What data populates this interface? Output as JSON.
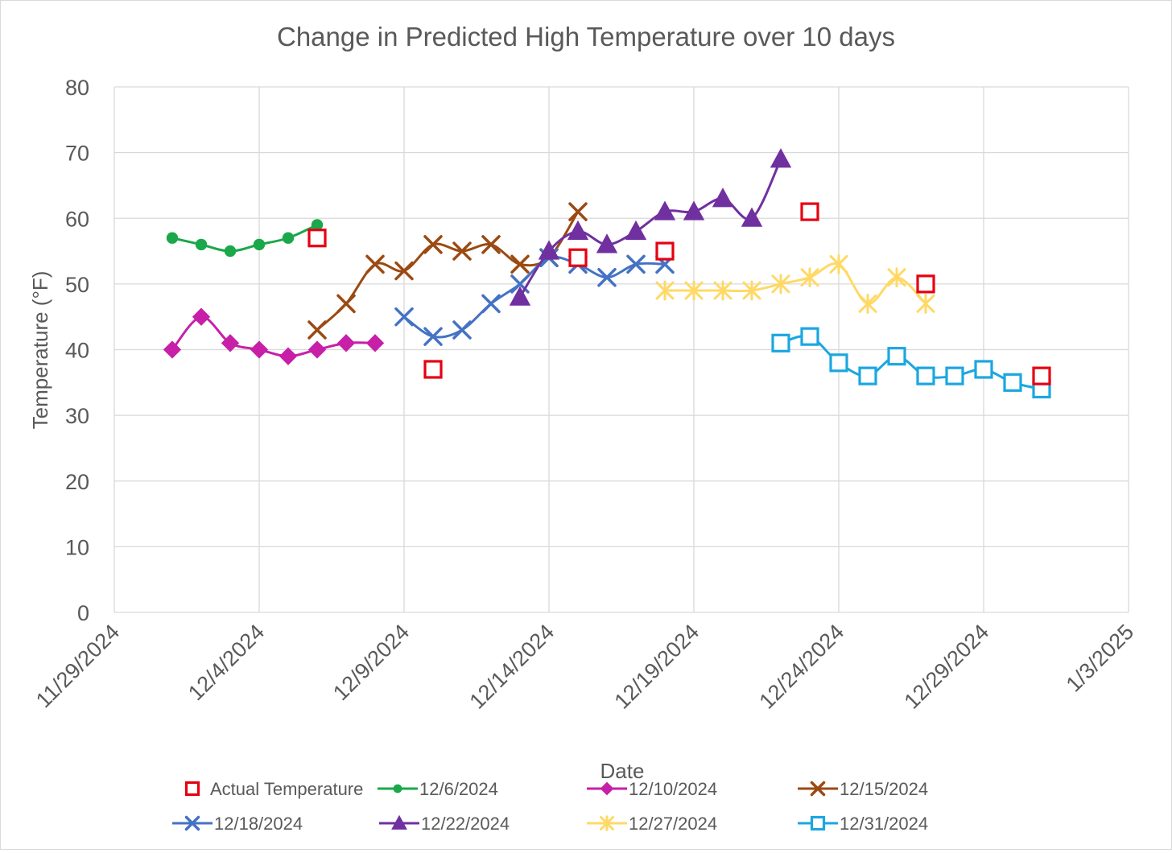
{
  "chart_data": {
    "type": "line",
    "title": "Change in Predicted High Temperature over 10 days",
    "xlabel": "Date",
    "ylabel": "Temperature (°F)",
    "ylim": [
      0,
      80
    ],
    "yticks": [
      0,
      10,
      20,
      30,
      40,
      50,
      60,
      70,
      80
    ],
    "x_origin": "11/29/2024",
    "xlim": [
      0,
      35
    ],
    "xticks": [
      {
        "day": 0,
        "label": "11/29/2024"
      },
      {
        "day": 5,
        "label": "12/4/2024"
      },
      {
        "day": 10,
        "label": "12/9/2024"
      },
      {
        "day": 15,
        "label": "12/14/2024"
      },
      {
        "day": 20,
        "label": "12/19/2024"
      },
      {
        "day": 25,
        "label": "12/24/2024"
      },
      {
        "day": 30,
        "label": "12/29/2024"
      },
      {
        "day": 35,
        "label": "1/3/2025"
      }
    ],
    "grid": true,
    "legend_position": "bottom",
    "series": [
      {
        "name": "Actual Temperature",
        "color": "#e60012",
        "marker": "square-open",
        "line": false,
        "x": [
          7,
          11,
          16,
          19,
          24,
          28,
          32
        ],
        "y": [
          57,
          37,
          54,
          55,
          61,
          50,
          36
        ]
      },
      {
        "name": "12/6/2024",
        "color": "#1aa84a",
        "marker": "circle",
        "line": true,
        "x": [
          2,
          3,
          4,
          5,
          6,
          7
        ],
        "y": [
          57,
          56,
          55,
          56,
          57,
          59
        ]
      },
      {
        "name": "12/10/2024",
        "color": "#c71fa8",
        "marker": "diamond",
        "line": true,
        "x": [
          2,
          3,
          4,
          5,
          6,
          7,
          8,
          9
        ],
        "y": [
          40,
          45,
          41,
          40,
          39,
          40,
          41,
          41
        ]
      },
      {
        "name": "12/15/2024",
        "color": "#9b4a12",
        "marker": "x",
        "line": true,
        "x": [
          7,
          8,
          9,
          10,
          11,
          12,
          13,
          14,
          15,
          16
        ],
        "y": [
          43,
          47,
          53,
          52,
          56,
          55,
          56,
          53,
          54,
          61
        ]
      },
      {
        "name": "12/18/2024",
        "color": "#4472c4",
        "marker": "x",
        "line": true,
        "x": [
          10,
          11,
          12,
          13,
          14,
          15,
          16,
          17,
          18,
          19
        ],
        "y": [
          45,
          42,
          43,
          47,
          50,
          54,
          53,
          51,
          53,
          53
        ]
      },
      {
        "name": "12/22/2024",
        "color": "#7030a0",
        "marker": "triangle",
        "line": true,
        "x": [
          14,
          15,
          16,
          17,
          18,
          19,
          20,
          21,
          22,
          23
        ],
        "y": [
          48,
          55,
          58,
          56,
          58,
          61,
          61,
          63,
          60,
          69
        ]
      },
      {
        "name": "12/27/2024",
        "color": "#ffd966",
        "marker": "star",
        "line": true,
        "x": [
          19,
          20,
          21,
          22,
          23,
          24,
          25,
          26,
          27,
          28
        ],
        "y": [
          49,
          49,
          49,
          49,
          50,
          51,
          53,
          47,
          51,
          47
        ]
      },
      {
        "name": "12/31/2024",
        "color": "#1ba7e0",
        "marker": "square-open",
        "line": true,
        "x": [
          23,
          24,
          25,
          26,
          27,
          28,
          29,
          30,
          31,
          32
        ],
        "y": [
          41,
          42,
          38,
          36,
          39,
          36,
          36,
          37,
          35,
          34
        ]
      }
    ]
  }
}
